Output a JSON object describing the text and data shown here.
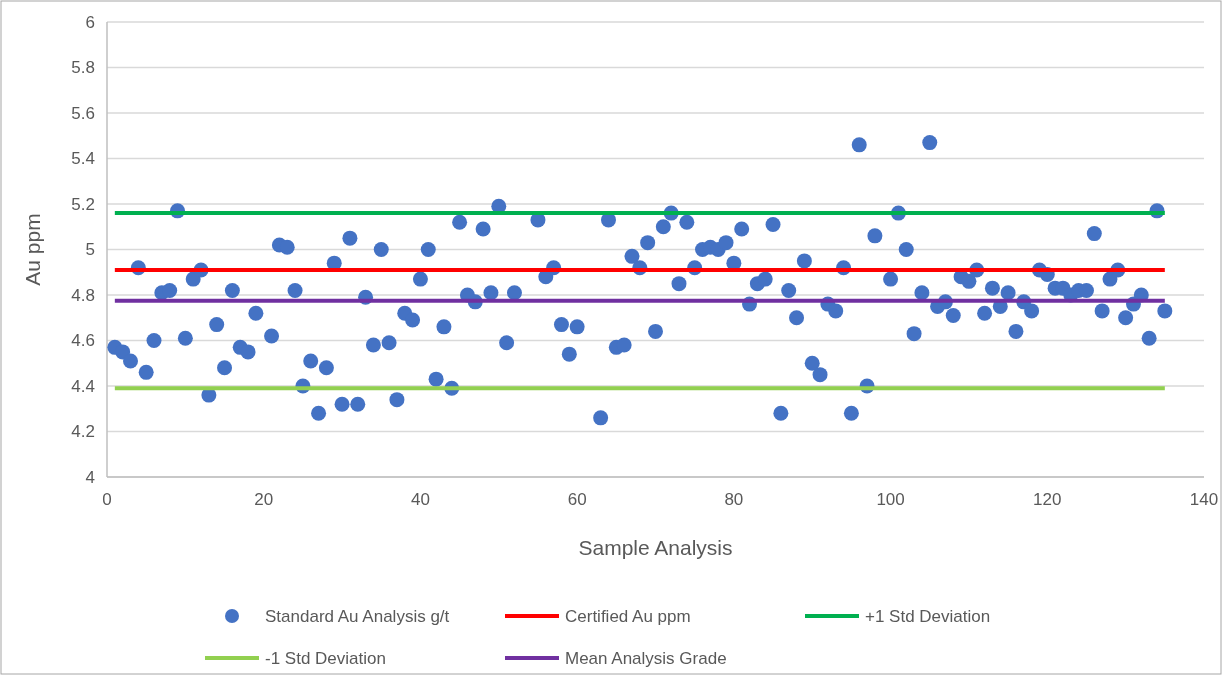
{
  "chart_data": {
    "type": "scatter",
    "xlabel": "Sample Analysis",
    "ylabel": "Au ppm",
    "xlim": [
      0,
      140
    ],
    "xticks": [
      0,
      20,
      40,
      60,
      80,
      100,
      120,
      140
    ],
    "ylim": [
      4,
      6
    ],
    "yticks": [
      4,
      4.2,
      4.4,
      4.6,
      4.8,
      5,
      5.2,
      5.4,
      5.6,
      5.8,
      6
    ],
    "grid": "y",
    "legend": "bottom",
    "series": [
      {
        "name": "Standard Au Analysis g/t",
        "marker": "circle",
        "color": "#4472c4",
        "x": [
          1,
          2,
          3,
          4,
          5,
          6,
          7,
          8,
          9,
          10,
          11,
          12,
          13,
          14,
          15,
          16,
          17,
          18,
          19,
          21,
          22,
          23,
          24,
          25,
          26,
          27,
          28,
          29,
          30,
          31,
          32,
          33,
          34,
          35,
          36,
          37,
          38,
          39,
          40,
          41,
          42,
          43,
          44,
          45,
          46,
          47,
          48,
          49,
          50,
          51,
          52,
          55,
          56,
          57,
          58,
          59,
          60,
          63,
          64,
          65,
          66,
          67,
          68,
          69,
          70,
          71,
          72,
          73,
          74,
          75,
          76,
          77,
          78,
          79,
          80,
          81,
          82,
          83,
          84,
          85,
          86,
          87,
          88,
          89,
          90,
          91,
          92,
          93,
          94,
          95,
          96,
          97,
          98,
          100,
          101,
          102,
          103,
          104,
          105,
          106,
          107,
          108,
          109,
          110,
          111,
          112,
          113,
          114,
          115,
          116,
          117,
          118,
          119,
          120,
          121,
          122,
          123,
          124,
          125,
          126,
          127,
          128,
          129,
          130,
          131,
          132,
          133,
          134,
          135
        ],
        "values": [
          4.57,
          4.55,
          4.51,
          4.92,
          4.46,
          4.6,
          4.81,
          4.82,
          5.17,
          4.61,
          4.87,
          4.91,
          4.36,
          4.67,
          4.48,
          4.82,
          4.57,
          4.55,
          4.72,
          4.62,
          5.02,
          5.01,
          4.82,
          4.4,
          4.51,
          4.28,
          4.48,
          4.94,
          4.32,
          5.05,
          4.32,
          4.79,
          4.58,
          5,
          4.59,
          4.34,
          4.72,
          4.69,
          4.87,
          5,
          4.43,
          4.66,
          4.39,
          5.12,
          4.8,
          4.77,
          5.09,
          4.81,
          5.19,
          4.59,
          4.81,
          5.13,
          4.88,
          4.92,
          4.67,
          4.54,
          4.66,
          4.26,
          5.13,
          4.57,
          4.58,
          4.97,
          4.92,
          5.03,
          4.64,
          5.1,
          5.16,
          4.85,
          5.12,
          4.92,
          5,
          5.01,
          5,
          5.03,
          4.94,
          5.09,
          4.76,
          4.85,
          4.87,
          5.11,
          4.28,
          4.82,
          4.7,
          4.95,
          4.5,
          4.45,
          4.76,
          4.73,
          4.92,
          4.28,
          5.46,
          4.4,
          5.06,
          4.87,
          5.16,
          5,
          4.63,
          4.81,
          5.47,
          4.75,
          4.77,
          4.71,
          4.88,
          4.86,
          4.91,
          4.72,
          4.83,
          4.75,
          4.81,
          4.64,
          4.77,
          4.73,
          4.91,
          4.89,
          4.83,
          4.83,
          4.8,
          4.82,
          4.82,
          5.07,
          4.73,
          4.87,
          4.91,
          4.7,
          4.76,
          4.8,
          4.61,
          5.17,
          4.73
        ]
      },
      {
        "name": "Certified Au ppm",
        "type": "line",
        "color": "#ff0000",
        "x": [
          1,
          135
        ],
        "values": [
          4.91,
          4.91
        ]
      },
      {
        "name": "+1 Std Deviation",
        "type": "line",
        "color": "#00b050",
        "x": [
          1,
          135
        ],
        "values": [
          5.16,
          5.16
        ]
      },
      {
        "name": "-1 Std Deviation",
        "type": "line",
        "color": "#92d050",
        "x": [
          1,
          135
        ],
        "values": [
          4.39,
          4.39
        ]
      },
      {
        "name": "Mean Analysis Grade",
        "type": "line",
        "color": "#7030a0",
        "x": [
          1,
          135
        ],
        "values": [
          4.775,
          4.775
        ]
      }
    ]
  }
}
